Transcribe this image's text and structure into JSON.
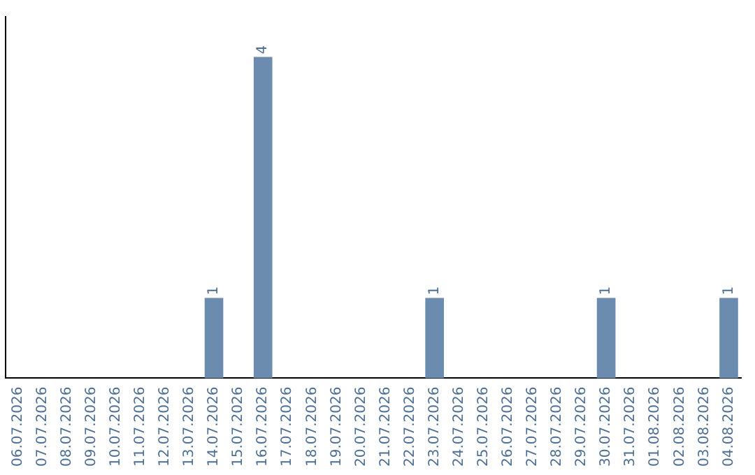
{
  "chart_data": {
    "type": "bar",
    "categories": [
      "06.07.2026",
      "07.07.2026",
      "08.07.2026",
      "09.07.2026",
      "10.07.2026",
      "11.07.2026",
      "12.07.2026",
      "13.07.2026",
      "14.07.2026",
      "15.07.2026",
      "16.07.2026",
      "17.07.2026",
      "18.07.2026",
      "19.07.2026",
      "20.07.2026",
      "21.07.2026",
      "22.07.2026",
      "23.07.2026",
      "24.07.2026",
      "25.07.2026",
      "26.07.2026",
      "27.07.2026",
      "28.07.2026",
      "29.07.2026",
      "30.07.2026",
      "31.07.2026",
      "01.08.2026",
      "02.08.2026",
      "03.08.2026",
      "04.08.2026"
    ],
    "values": [
      0,
      0,
      0,
      0,
      0,
      0,
      0,
      0,
      1,
      0,
      4,
      0,
      0,
      0,
      0,
      0,
      0,
      1,
      0,
      0,
      0,
      0,
      0,
      0,
      1,
      0,
      0,
      0,
      0,
      1
    ],
    "value_labels": [
      null,
      null,
      null,
      null,
      null,
      null,
      null,
      null,
      "1",
      null,
      "4",
      null,
      null,
      null,
      null,
      null,
      null,
      "1",
      null,
      null,
      null,
      null,
      null,
      null,
      "1",
      null,
      null,
      null,
      null,
      "1"
    ],
    "color": "#6b8cae",
    "tick_labels": "x",
    "grid": false,
    "legend": false
  }
}
